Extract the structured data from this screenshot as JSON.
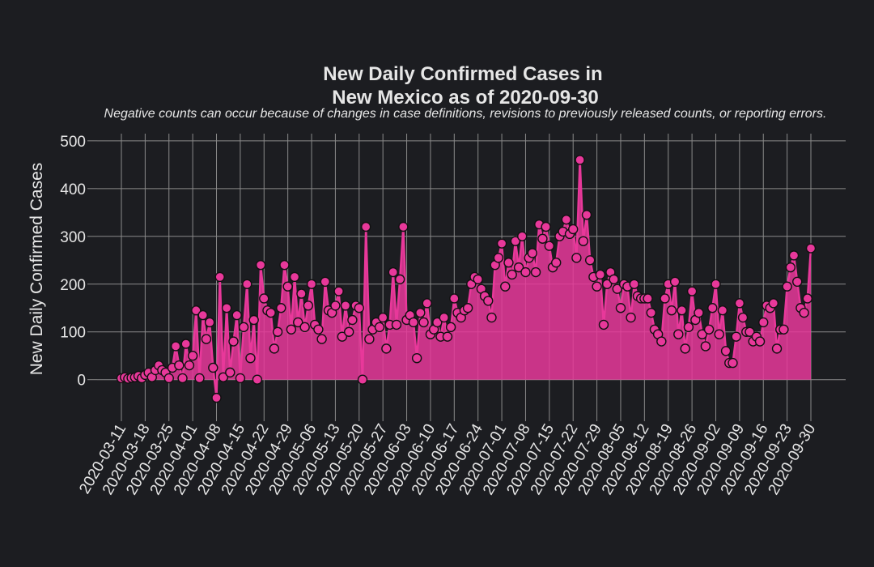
{
  "chart_data": {
    "type": "line",
    "title_line1": "New Daily Confirmed Cases in",
    "title_line2": "New Mexico as of 2020-09-30",
    "subtitle": "Negative counts can occur because of changes in case definitions, revisions to previously released counts, or reporting errors.",
    "ylabel": "New Daily Confirmed Cases",
    "xlabel": "",
    "start_date": "2020-03-11",
    "end_date": "2020-09-30",
    "ylim": [
      -70,
      515
    ],
    "yticks": [
      0,
      100,
      200,
      300,
      400,
      500
    ],
    "xtick_labels": [
      "2020-03-11",
      "2020-03-18",
      "2020-03-25",
      "2020-04-01",
      "2020-04-08",
      "2020-04-15",
      "2020-04-22",
      "2020-04-29",
      "2020-05-06",
      "2020-05-13",
      "2020-05-20",
      "2020-05-27",
      "2020-06-03",
      "2020-06-10",
      "2020-06-17",
      "2020-06-24",
      "2020-07-01",
      "2020-07-08",
      "2020-07-15",
      "2020-07-22",
      "2020-07-29",
      "2020-08-05",
      "2020-08-12",
      "2020-08-19",
      "2020-08-26",
      "2020-09-02",
      "2020-09-09",
      "2020-09-16",
      "2020-09-23",
      "2020-09-30"
    ],
    "grid": true,
    "colors": {
      "line": "#e8389a",
      "marker_edge": "#111111",
      "background": "#1c1d21",
      "text": "#e6e6e6",
      "grid": "#8a8a8a"
    },
    "series": [
      {
        "values": [
          3,
          5,
          2,
          4,
          5,
          8,
          3,
          10,
          15,
          5,
          20,
          30,
          20,
          15,
          3,
          25,
          70,
          30,
          3,
          75,
          30,
          50,
          145,
          3,
          135,
          85,
          120,
          25,
          -38,
          215,
          5,
          150,
          15,
          80,
          135,
          3,
          110,
          200,
          45,
          125,
          0,
          240,
          170,
          145,
          140,
          65,
          100,
          150,
          240,
          195,
          105,
          215,
          120,
          180,
          110,
          155,
          200,
          115,
          105,
          85,
          205,
          145,
          140,
          155,
          185,
          90,
          155,
          100,
          125,
          155,
          150,
          0,
          320,
          85,
          105,
          120,
          110,
          130,
          65,
          115,
          225,
          115,
          210,
          320,
          125,
          135,
          120,
          45,
          140,
          120,
          160,
          95,
          105,
          120,
          90,
          130,
          90,
          110,
          170,
          140,
          130,
          145,
          150,
          200,
          215,
          210,
          190,
          175,
          165,
          130,
          240,
          255,
          285,
          195,
          245,
          220,
          290,
          235,
          300,
          225,
          255,
          265,
          225,
          325,
          295,
          320,
          280,
          235,
          245,
          300,
          310,
          335,
          305,
          315,
          255,
          460,
          290,
          345,
          250,
          215,
          195,
          220,
          115,
          200,
          225,
          210,
          190,
          150,
          200,
          195,
          130,
          200,
          175,
          170,
          170,
          170,
          140,
          105,
          95,
          80,
          170,
          200,
          145,
          205,
          95,
          145,
          65,
          110,
          185,
          125,
          140,
          95,
          70,
          105,
          150,
          200,
          95,
          145,
          60,
          35,
          35,
          90,
          160,
          130,
          100,
          100,
          80,
          90,
          80,
          120,
          155,
          150,
          160,
          65,
          105,
          105,
          195,
          235,
          260,
          205,
          150,
          140,
          170,
          275
        ]
      }
    ]
  }
}
